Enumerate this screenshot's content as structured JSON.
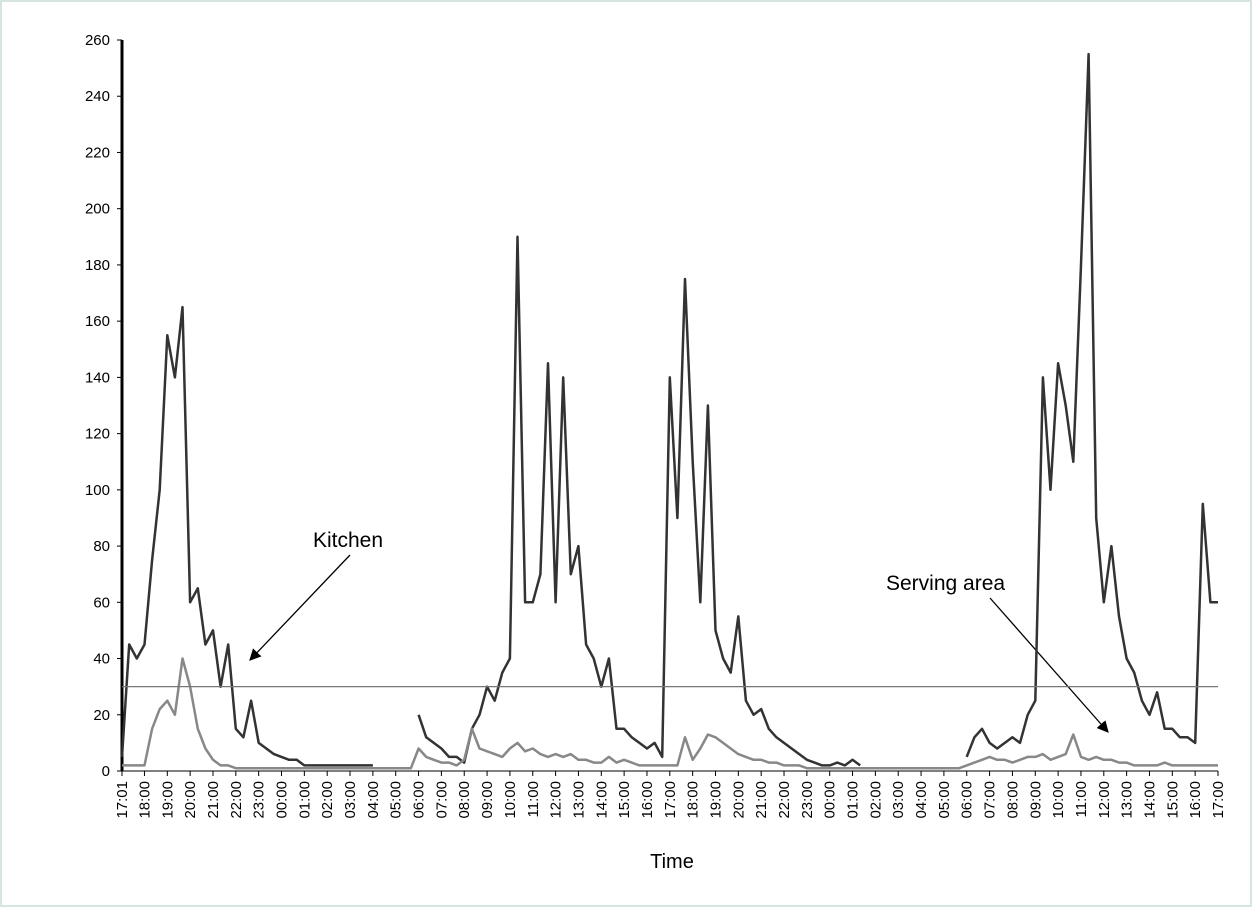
{
  "chart_data": {
    "type": "line",
    "x_label": "Time",
    "xlim": [
      1,
      2880
    ],
    "ylim": [
      0,
      260
    ],
    "yticks": [
      0,
      20,
      40,
      60,
      80,
      100,
      120,
      140,
      160,
      180,
      200,
      220,
      240,
      260
    ],
    "xticks": [
      {
        "value": 1,
        "label": "17:01"
      },
      {
        "value": 60,
        "label": "18:00"
      },
      {
        "value": 120,
        "label": "19:00"
      },
      {
        "value": 180,
        "label": "20:00"
      },
      {
        "value": 240,
        "label": "21:00"
      },
      {
        "value": 300,
        "label": "22:00"
      },
      {
        "value": 360,
        "label": "23:00"
      },
      {
        "value": 420,
        "label": "00:00"
      },
      {
        "value": 480,
        "label": "01:00"
      },
      {
        "value": 540,
        "label": "02:00"
      },
      {
        "value": 600,
        "label": "03:00"
      },
      {
        "value": 660,
        "label": "04:00"
      },
      {
        "value": 720,
        "label": "05:00"
      },
      {
        "value": 780,
        "label": "06:00"
      },
      {
        "value": 840,
        "label": "07:00"
      },
      {
        "value": 900,
        "label": "08:00"
      },
      {
        "value": 960,
        "label": "09:00"
      },
      {
        "value": 1020,
        "label": "10:00"
      },
      {
        "value": 1080,
        "label": "11:00"
      },
      {
        "value": 1140,
        "label": "12:00"
      },
      {
        "value": 1200,
        "label": "13:00"
      },
      {
        "value": 1260,
        "label": "14:00"
      },
      {
        "value": 1320,
        "label": "15:00"
      },
      {
        "value": 1380,
        "label": "16:00"
      },
      {
        "value": 1440,
        "label": "17:00"
      },
      {
        "value": 1500,
        "label": "18:00"
      },
      {
        "value": 1560,
        "label": "19:00"
      },
      {
        "value": 1620,
        "label": "20:00"
      },
      {
        "value": 1680,
        "label": "21:00"
      },
      {
        "value": 1740,
        "label": "22:00"
      },
      {
        "value": 1800,
        "label": "23:00"
      },
      {
        "value": 1860,
        "label": "00:00"
      },
      {
        "value": 1920,
        "label": "01:00"
      },
      {
        "value": 1980,
        "label": "02:00"
      },
      {
        "value": 2040,
        "label": "03:00"
      },
      {
        "value": 2100,
        "label": "04:00"
      },
      {
        "value": 2160,
        "label": "05:00"
      },
      {
        "value": 2220,
        "label": "06:00"
      },
      {
        "value": 2280,
        "label": "07:00"
      },
      {
        "value": 2340,
        "label": "08:00"
      },
      {
        "value": 2400,
        "label": "09:00"
      },
      {
        "value": 2460,
        "label": "10:00"
      },
      {
        "value": 2520,
        "label": "11:00"
      },
      {
        "value": 2580,
        "label": "12:00"
      },
      {
        "value": 2640,
        "label": "13:00"
      },
      {
        "value": 2700,
        "label": "14:00"
      },
      {
        "value": 2760,
        "label": "15:00"
      },
      {
        "value": 2820,
        "label": "16:00"
      },
      {
        "value": 2880,
        "label": "17:00"
      }
    ],
    "hline": 30,
    "hline_color": "#777777",
    "x": [
      1,
      20,
      40,
      60,
      80,
      100,
      120,
      140,
      160,
      180,
      200,
      220,
      240,
      260,
      280,
      300,
      320,
      340,
      360,
      380,
      400,
      420,
      440,
      460,
      480,
      500,
      520,
      540,
      560,
      580,
      600,
      620,
      640,
      660,
      680,
      700,
      720,
      740,
      760,
      780,
      800,
      820,
      840,
      860,
      880,
      900,
      920,
      940,
      960,
      980,
      1000,
      1020,
      1040,
      1060,
      1080,
      1100,
      1120,
      1140,
      1160,
      1180,
      1200,
      1220,
      1240,
      1260,
      1280,
      1300,
      1320,
      1340,
      1360,
      1380,
      1400,
      1420,
      1440,
      1460,
      1480,
      1500,
      1520,
      1540,
      1560,
      1580,
      1600,
      1620,
      1640,
      1660,
      1680,
      1700,
      1720,
      1740,
      1760,
      1780,
      1800,
      1820,
      1840,
      1860,
      1880,
      1900,
      1920,
      1940,
      1960,
      1980,
      2000,
      2020,
      2040,
      2060,
      2080,
      2100,
      2120,
      2140,
      2160,
      2180,
      2200,
      2220,
      2240,
      2260,
      2280,
      2300,
      2320,
      2340,
      2360,
      2380,
      2400,
      2420,
      2440,
      2460,
      2480,
      2500,
      2520,
      2540,
      2560,
      2580,
      2600,
      2620,
      2640,
      2660,
      2680,
      2700,
      2720,
      2740,
      2760,
      2780,
      2800,
      2820,
      2840,
      2860,
      2880
    ],
    "series": [
      {
        "name": "Kitchen",
        "color": "#333333",
        "values": [
          5,
          45,
          40,
          45,
          75,
          100,
          155,
          140,
          165,
          60,
          65,
          45,
          50,
          30,
          45,
          15,
          12,
          25,
          10,
          8,
          6,
          5,
          4,
          4,
          2,
          2,
          2,
          2,
          2,
          2,
          2,
          2,
          2,
          2,
          null,
          null,
          null,
          null,
          null,
          20,
          12,
          10,
          8,
          5,
          5,
          3,
          15,
          20,
          30,
          25,
          35,
          40,
          190,
          60,
          60,
          70,
          145,
          60,
          140,
          70,
          80,
          45,
          40,
          30,
          40,
          15,
          15,
          12,
          10,
          8,
          10,
          5,
          140,
          90,
          175,
          110,
          60,
          130,
          50,
          40,
          35,
          55,
          25,
          20,
          22,
          15,
          12,
          10,
          8,
          6,
          4,
          3,
          2,
          2,
          3,
          2,
          4,
          2,
          null,
          null,
          null,
          null,
          null,
          null,
          null,
          null,
          null,
          null,
          null,
          null,
          null,
          5,
          12,
          15,
          10,
          8,
          10,
          12,
          10,
          20,
          25,
          140,
          100,
          145,
          130,
          110,
          180,
          255,
          90,
          60,
          80,
          55,
          40,
          35,
          25,
          20,
          28,
          15,
          15,
          12,
          12,
          10,
          95,
          60,
          60
        ]
      },
      {
        "name": "Serving area",
        "color": "#888888",
        "values": [
          2,
          2,
          2,
          2,
          15,
          22,
          25,
          20,
          40,
          30,
          15,
          8,
          4,
          2,
          2,
          1,
          1,
          1,
          1,
          1,
          1,
          1,
          1,
          1,
          1,
          1,
          1,
          1,
          1,
          1,
          1,
          1,
          1,
          1,
          1,
          1,
          1,
          1,
          1,
          8,
          5,
          4,
          3,
          3,
          2,
          4,
          15,
          8,
          7,
          6,
          5,
          8,
          10,
          7,
          8,
          6,
          5,
          6,
          5,
          6,
          4,
          4,
          3,
          3,
          5,
          3,
          4,
          3,
          2,
          2,
          2,
          2,
          2,
          2,
          12,
          4,
          8,
          13,
          12,
          10,
          8,
          6,
          5,
          4,
          4,
          3,
          3,
          2,
          2,
          2,
          1,
          1,
          1,
          1,
          1,
          1,
          1,
          1,
          1,
          1,
          1,
          1,
          1,
          1,
          1,
          1,
          1,
          1,
          1,
          1,
          1,
          2,
          3,
          4,
          5,
          4,
          4,
          3,
          4,
          5,
          5,
          6,
          4,
          5,
          6,
          13,
          5,
          4,
          5,
          4,
          4,
          3,
          3,
          2,
          2,
          2,
          2,
          3,
          2,
          2,
          2,
          2,
          2,
          2,
          2
        ]
      }
    ]
  }
}
